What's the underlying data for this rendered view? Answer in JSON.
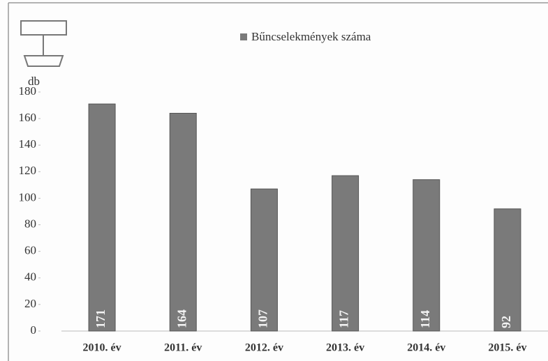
{
  "chart_data": {
    "type": "bar",
    "legend": "Bűncselekmények száma",
    "y_axis_label": "db",
    "categories": [
      "2010. év",
      "2011. év",
      "2012. év",
      "2013. év",
      "2014. év",
      "2015. év"
    ],
    "values": [
      171,
      164,
      107,
      117,
      114,
      92
    ],
    "color": "#7a7a7a",
    "ylim": [
      0,
      180
    ],
    "yticks": [
      0,
      20,
      40,
      60,
      80,
      100,
      120,
      140,
      160,
      180
    ]
  }
}
